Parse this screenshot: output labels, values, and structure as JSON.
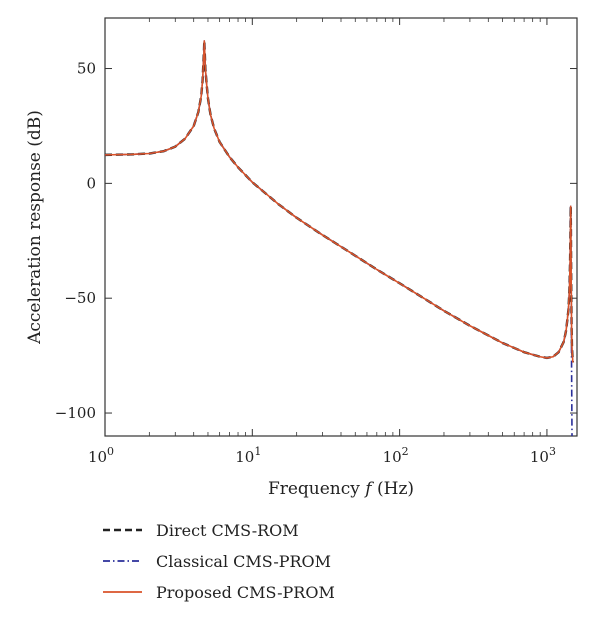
{
  "chart_data": {
    "type": "line",
    "title": "",
    "xlabel": "Frequency",
    "xlabel_var": "f",
    "xlabel_unit": "(Hz)",
    "ylabel": "Acceleration response (dB)",
    "xscale": "log",
    "xlim": [
      1,
      1600
    ],
    "ylim": [
      -110,
      72
    ],
    "grid": false,
    "legend_position": "below",
    "x_ticks": [
      {
        "value": 1,
        "base": "10",
        "exp": "0"
      },
      {
        "value": 10,
        "base": "10",
        "exp": "1"
      },
      {
        "value": 100,
        "base": "10",
        "exp": "2"
      },
      {
        "value": 1000,
        "base": "10",
        "exp": "3"
      }
    ],
    "y_ticks": [
      {
        "value": 50,
        "label": "50"
      },
      {
        "value": 0,
        "label": "0"
      },
      {
        "value": -50,
        "label": "−50"
      },
      {
        "value": -100,
        "label": "−100"
      }
    ],
    "x": [
      1,
      1.5,
      2,
      2.5,
      3,
      3.5,
      4,
      4.3,
      4.5,
      4.6,
      4.65,
      4.7,
      4.72,
      4.75,
      4.8,
      4.9,
      5.0,
      5.2,
      5.5,
      6,
      7,
      8,
      10,
      15,
      20,
      30,
      50,
      70,
      100,
      150,
      200,
      300,
      500,
      700,
      900,
      1000,
      1100,
      1200,
      1300,
      1350,
      1400,
      1420,
      1435,
      1445,
      1450,
      1455,
      1462,
      1470,
      1480,
      1500
    ],
    "series": [
      {
        "name": "Direct CMS-ROM",
        "color": "#222222",
        "style": "dashed",
        "y": [
          12.4,
          12.6,
          13.0,
          14.0,
          16.0,
          19.5,
          25.0,
          31.0,
          38.0,
          45.0,
          52.0,
          58.0,
          62.0,
          58.0,
          50.0,
          43.0,
          37.0,
          30.0,
          24.0,
          18.0,
          11.5,
          7.0,
          0.5,
          -9.0,
          -15.0,
          -22.5,
          -31.5,
          -37.5,
          -43.5,
          -50.5,
          -55.5,
          -62.0,
          -69.5,
          -73.5,
          -75.5,
          -76.0,
          -75.5,
          -73.5,
          -69.0,
          -64.0,
          -55.0,
          -47.0,
          -35.0,
          -20.0,
          -10.0,
          -20.0,
          -45.0,
          -62.0,
          -72.0,
          -78.0
        ]
      },
      {
        "name": "Classical CMS-PROM",
        "color": "#2a2f9a",
        "style": "dashdot",
        "y": [
          12.4,
          12.6,
          13.0,
          14.0,
          16.0,
          19.5,
          25.0,
          31.0,
          38.0,
          45.0,
          52.0,
          58.0,
          62.0,
          58.0,
          50.0,
          43.0,
          37.0,
          30.0,
          24.0,
          18.0,
          11.5,
          7.0,
          0.5,
          -9.0,
          -15.0,
          -22.5,
          -31.5,
          -37.5,
          -43.5,
          -50.5,
          -55.5,
          -62.0,
          -69.5,
          -73.5,
          -75.5,
          -76.0,
          -75.5,
          -73.5,
          -69.0,
          -64.0,
          -55.0,
          -47.0,
          -35.0,
          -20.0,
          -10.0,
          -20.0,
          -45.0,
          -80.0,
          -110.0,
          -110.0
        ]
      },
      {
        "name": "Proposed CMS-PROM",
        "color": "#d9532a",
        "style": "solid",
        "y": [
          12.4,
          12.6,
          13.0,
          14.0,
          16.0,
          19.5,
          25.0,
          31.0,
          38.0,
          45.0,
          52.0,
          58.0,
          62.0,
          58.0,
          50.0,
          43.0,
          37.0,
          30.0,
          24.0,
          18.0,
          11.5,
          7.0,
          0.5,
          -9.0,
          -15.0,
          -22.5,
          -31.5,
          -37.5,
          -43.5,
          -50.5,
          -55.5,
          -62.0,
          -69.5,
          -73.5,
          -75.5,
          -76.0,
          -75.5,
          -73.5,
          -69.0,
          -64.0,
          -55.0,
          -47.0,
          -35.0,
          -20.0,
          -10.0,
          -20.0,
          -45.0,
          -62.0,
          -72.0,
          -78.0
        ]
      }
    ]
  }
}
